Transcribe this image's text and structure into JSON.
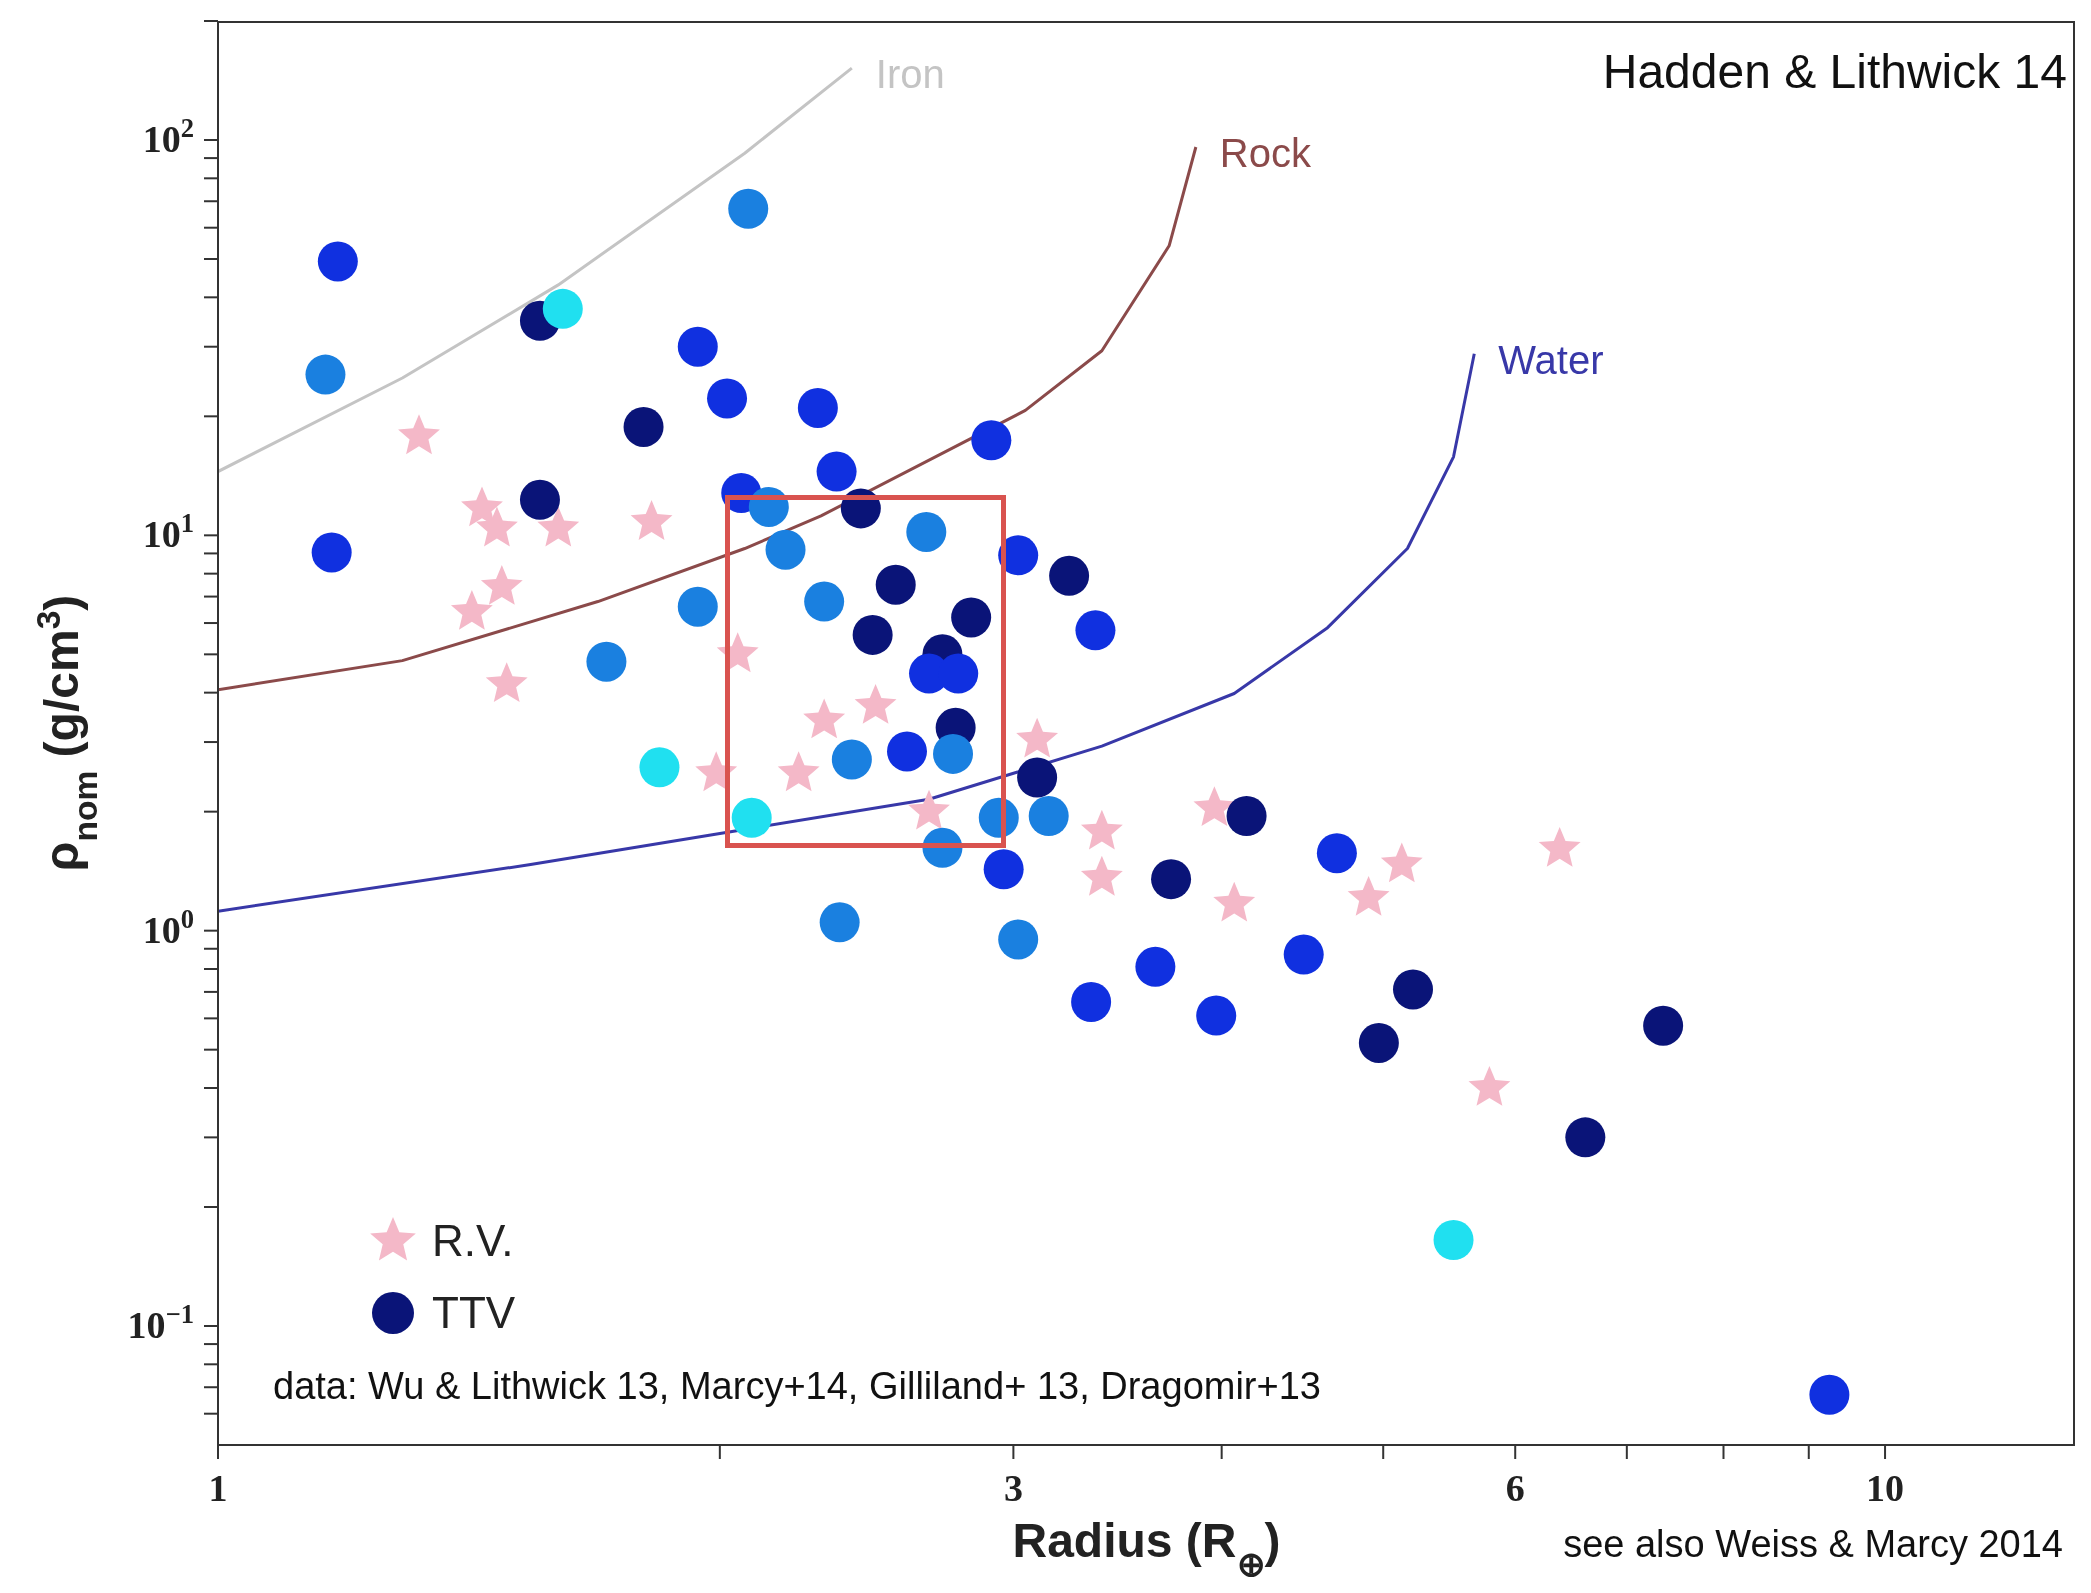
{
  "chart_data": {
    "type": "scatter",
    "xlabel": "Radius (R$_{⊕}$)",
    "ylabel": "ρ$_{nom}$ (g/cm$^{3}$)",
    "log": "xy",
    "grid": false,
    "legend": "bottom left",
    "xlim": [
      1,
      13
    ],
    "xticks": [
      1,
      {
        "value": 2,
        "label": null
      },
      3,
      {
        "value": 4,
        "label": null
      },
      {
        "value": 5,
        "label": null
      },
      6,
      {
        "value": 7,
        "label": null
      },
      {
        "value": 8,
        "label": null
      },
      {
        "value": 9,
        "label": null
      },
      10
    ],
    "ylim": [
      0.05,
      200
    ],
    "yticks": [
      {
        "value": 0.06,
        "label": null
      },
      {
        "value": 0.07,
        "label": null
      },
      {
        "value": 0.08,
        "label": null
      },
      {
        "value": 0.09,
        "label": null
      },
      {
        "value": 0.1,
        "label": "10$^{−1}$"
      },
      {
        "value": 0.2,
        "label": null
      },
      {
        "value": 0.3,
        "label": null
      },
      {
        "value": 0.4,
        "label": null
      },
      {
        "value": 0.5,
        "label": null
      },
      {
        "value": 0.6,
        "label": null
      },
      {
        "value": 0.7,
        "label": null
      },
      {
        "value": 0.8,
        "label": null
      },
      {
        "value": 0.9,
        "label": null
      },
      {
        "value": 1,
        "label": "10$^{0}$"
      },
      {
        "value": 2,
        "label": null
      },
      {
        "value": 3,
        "label": null
      },
      {
        "value": 4,
        "label": null
      },
      {
        "value": 5,
        "label": null
      },
      {
        "value": 6,
        "label": null
      },
      {
        "value": 7,
        "label": null
      },
      {
        "value": 8,
        "label": null
      },
      {
        "value": 9,
        "label": null
      },
      {
        "value": 10,
        "label": "10$^{1}$"
      },
      {
        "value": 20,
        "label": null
      },
      {
        "value": 30,
        "label": null
      },
      {
        "value": 40,
        "label": null
      },
      {
        "value": 50,
        "label": null
      },
      {
        "value": 60,
        "label": null
      },
      {
        "value": 70,
        "label": null
      },
      {
        "value": 80,
        "label": null
      },
      {
        "value": 90,
        "label": null
      },
      {
        "value": 100,
        "label": "10$^{2}$"
      },
      {
        "value": 200,
        "label": null
      }
    ],
    "annotations": [
      "Hadden & Lithwick 14",
      "data: Wu & Lithwick 13, Marcy+14, Gilliland+ 13, Dragomir+13",
      "see also Weiss & Marcy 2014"
    ],
    "series": [
      {
        "name": "Iron",
        "type": "line",
        "marker": "none",
        "color": "#c4c4c4",
        "x": [
          1,
          1.29,
          1.6,
          2.07,
          2.4
        ],
        "values": [
          14.5,
          25,
          43,
          92.6,
          152
        ]
      },
      {
        "name": "Rock",
        "type": "line",
        "marker": "none",
        "color": "#8b4a4a",
        "x": [
          1,
          1.29,
          1.69,
          2.07,
          2.3,
          3.05,
          3.39,
          3.72,
          3.86
        ],
        "values": [
          4.07,
          4.82,
          6.8,
          9.26,
          11.2,
          20.7,
          29.3,
          54,
          96
        ]
      },
      {
        "name": "Water",
        "type": "line",
        "marker": "none",
        "color": "#3838a8",
        "x": [
          1,
          1.54,
          2.03,
          2.67,
          3.39,
          4.07,
          4.63,
          5.17,
          5.51,
          5.67
        ],
        "values": [
          1.12,
          1.47,
          1.78,
          2.15,
          2.93,
          3.98,
          5.84,
          9.26,
          15.8,
          28.8
        ]
      },
      {
        "name": "R.V.",
        "marker": "star",
        "color": "#f4b8c8",
        "x": [
          1.32,
          1.44,
          1.47,
          1.6,
          1.82,
          1.48,
          1.42,
          1.49,
          2.05,
          2.31,
          2.48,
          2.23,
          1.99,
          2.67,
          3.1,
          3.39,
          3.39,
          3.96,
          4.07,
          4.9,
          5.13,
          5.79,
          6.38
        ],
        "values": [
          17.8,
          11.7,
          10.4,
          10.4,
          10.8,
          7.4,
          6.4,
          4.2,
          5.0,
          3.4,
          3.7,
          2.5,
          2.5,
          2.0,
          3.04,
          1.78,
          1.36,
          2.04,
          1.17,
          1.21,
          1.47,
          0.4,
          1.61
        ]
      },
      {
        "name": "TTV",
        "marker": "circle",
        "color": "#0a1478",
        "x": [
          1.18,
          1.16,
          1.17,
          2.08,
          1.56,
          1.61,
          1.56,
          1.8,
          1.94,
          2.02,
          2.29,
          2.91,
          2.35,
          2.06,
          2.14,
          2.43,
          2.66,
          2.19,
          3.02,
          3.24,
          2.55,
          2.31,
          1.94,
          2.83,
          3.36,
          2.47,
          2.72,
          2.67,
          2.78,
          1.71,
          2.77,
          3.1,
          2.59,
          2.4,
          2.76,
          1.84,
          2.09,
          2.94,
          3.15,
          4.14,
          2.72,
          4.69,
          2.96,
          3.73,
          2.36,
          3.02,
          4.48,
          3.65,
          5.21,
          3.34,
          3.97,
          4.97,
          7.36,
          6.61,
          5.51,
          9.26
        ],
        "values": [
          49.3,
          25.5,
          9.05,
          67,
          34.9,
          37.4,
          12.3,
          18.8,
          30,
          22.2,
          21,
          17.4,
          14.5,
          12.8,
          11.8,
          11.7,
          10.2,
          9.2,
          8.9,
          7.9,
          7.5,
          6.8,
          6.6,
          6.2,
          5.75,
          5.6,
          5.0,
          4.47,
          4.47,
          4.79,
          3.26,
          2.44,
          2.84,
          2.71,
          2.8,
          2.59,
          1.93,
          1.93,
          1.95,
          1.95,
          1.62,
          1.57,
          1.43,
          1.35,
          1.05,
          0.95,
          0.87,
          0.81,
          0.71,
          0.66,
          0.61,
          0.52,
          0.575,
          0.3,
          0.165,
          0.067
        ],
        "colors": [
          "#1030e0",
          "#1a80e0",
          "#1030e0",
          "#1a80e0",
          "#0a1478",
          "#20e0f0",
          "#0a1478",
          "#0a1478",
          "#1030e0",
          "#1030e0",
          "#1030e0",
          "#1030e0",
          "#1030e0",
          "#1030e0",
          "#1a80e0",
          "#0a1478",
          "#1a80e0",
          "#1a80e0",
          "#1030e0",
          "#0a1478",
          "#0a1478",
          "#1a80e0",
          "#1a80e0",
          "#0a1478",
          "#1030e0",
          "#0a1478",
          "#0a1478",
          "#1030e0",
          "#1030e0",
          "#1a80e0",
          "#0a1478",
          "#0a1478",
          "#1030e0",
          "#1a80e0",
          "#1a80e0",
          "#20e0f0",
          "#20e0f0",
          "#1a80e0",
          "#1a80e0",
          "#0a1478",
          "#1a80e0",
          "#1030e0",
          "#1030e0",
          "#0a1478",
          "#1a80e0",
          "#1a80e0",
          "#1030e0",
          "#1030e0",
          "#0a1478",
          "#1030e0",
          "#1030e0",
          "#0a1478",
          "#0a1478",
          "#0a1478",
          "#20e0f0",
          "#1030e0"
        ]
      }
    ]
  }
}
